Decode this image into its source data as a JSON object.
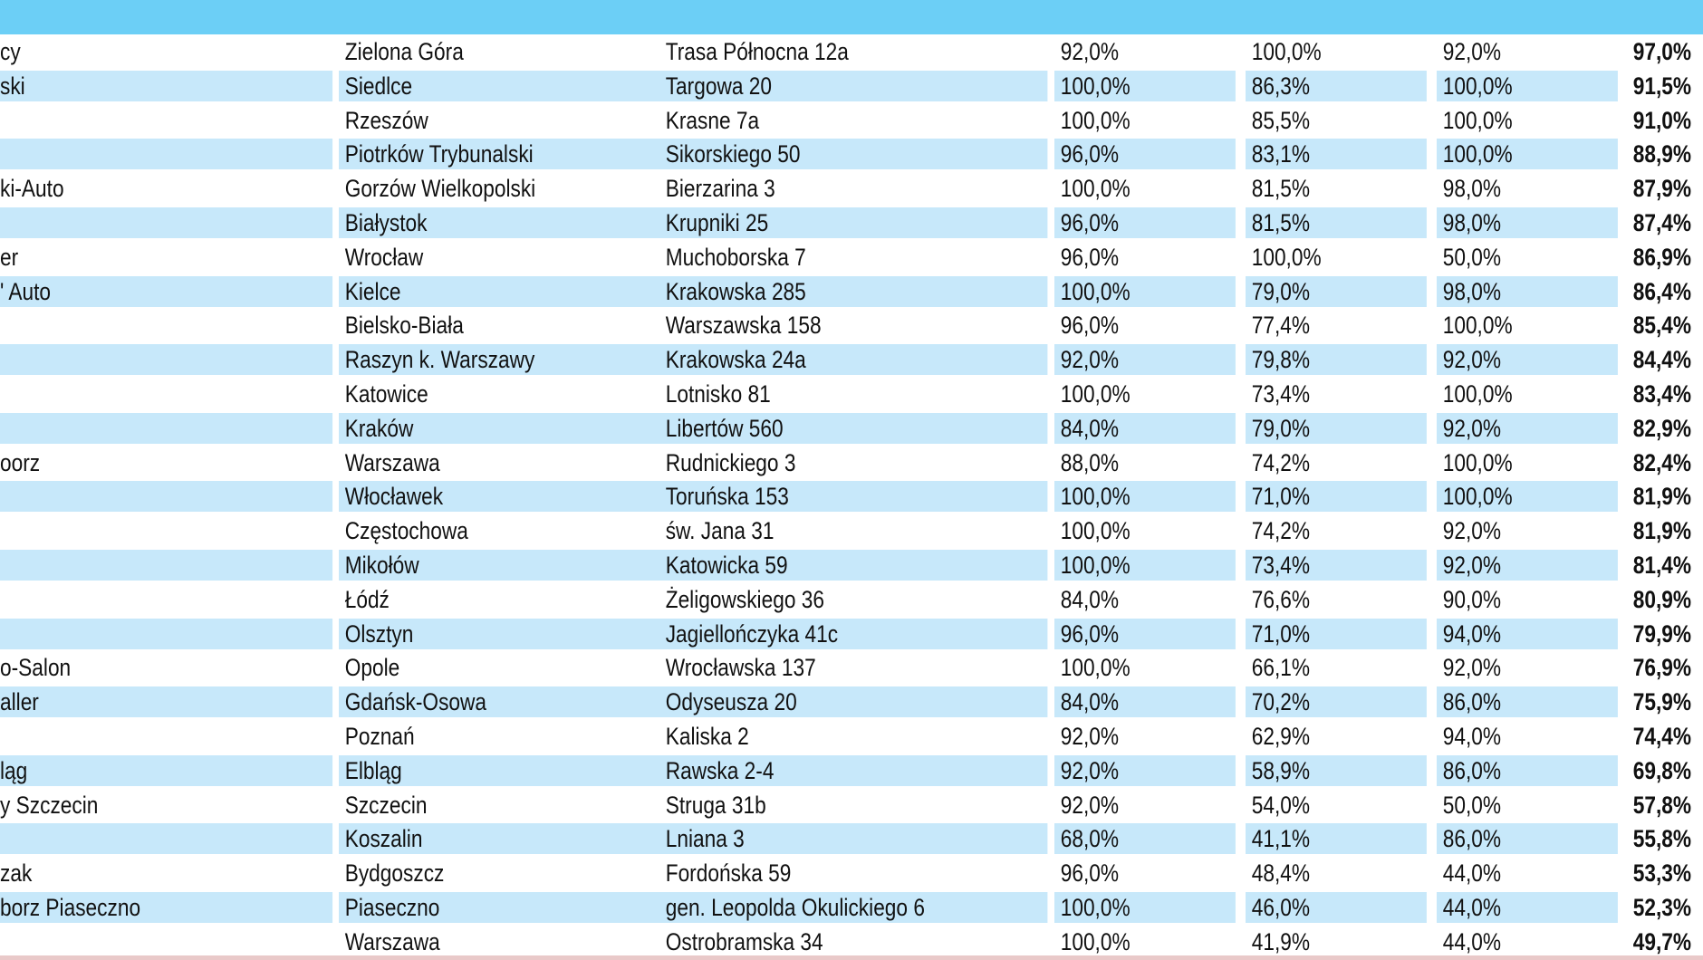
{
  "colors": {
    "header": "#6ccff6",
    "stripe": "#c7e8fa",
    "text": "#111111"
  },
  "rows": [
    {
      "name": "cy",
      "city": "Zielona Góra",
      "address": "Trasa Północna 12a",
      "p1": "92,0%",
      "p2": "100,0%",
      "p3": "92,0%",
      "total": "97,0%"
    },
    {
      "name": "ski",
      "city": "Siedlce",
      "address": "Targowa 20",
      "p1": "100,0%",
      "p2": "86,3%",
      "p3": "100,0%",
      "total": "91,5%"
    },
    {
      "name": "",
      "city": "Rzeszów",
      "address": "Krasne 7a",
      "p1": "100,0%",
      "p2": "85,5%",
      "p3": "100,0%",
      "total": "91,0%"
    },
    {
      "name": "",
      "city": "Piotrków Trybunalski",
      "address": "Sikorskiego 50",
      "p1": "96,0%",
      "p2": "83,1%",
      "p3": "100,0%",
      "total": "88,9%"
    },
    {
      "name": "ki-Auto",
      "city": "Gorzów Wielkopolski",
      "address": "Bierzarina 3",
      "p1": "100,0%",
      "p2": "81,5%",
      "p3": "98,0%",
      "total": "87,9%"
    },
    {
      "name": "",
      "city": "Białystok",
      "address": "Krupniki 25",
      "p1": "96,0%",
      "p2": "81,5%",
      "p3": "98,0%",
      "total": "87,4%"
    },
    {
      "name": "er",
      "city": "Wrocław",
      "address": "Muchoborska 7",
      "p1": "96,0%",
      "p2": "100,0%",
      "p3": "50,0%",
      "total": "86,9%"
    },
    {
      "name": "' Auto",
      "city": "Kielce",
      "address": "Krakowska 285",
      "p1": "100,0%",
      "p2": "79,0%",
      "p3": "98,0%",
      "total": "86,4%"
    },
    {
      "name": "",
      "city": "Bielsko-Biała",
      "address": "Warszawska 158",
      "p1": "96,0%",
      "p2": "77,4%",
      "p3": "100,0%",
      "total": "85,4%"
    },
    {
      "name": "",
      "city": "Raszyn k. Warszawy",
      "address": "Krakowska 24a",
      "p1": "92,0%",
      "p2": "79,8%",
      "p3": "92,0%",
      "total": "84,4%"
    },
    {
      "name": "",
      "city": "Katowice",
      "address": "Lotnisko 81",
      "p1": "100,0%",
      "p2": "73,4%",
      "p3": "100,0%",
      "total": "83,4%"
    },
    {
      "name": "",
      "city": "Kraków",
      "address": "Libertów 560",
      "p1": "84,0%",
      "p2": "79,0%",
      "p3": "92,0%",
      "total": "82,9%"
    },
    {
      "name": "oorz",
      "city": "Warszawa",
      "address": "Rudnickiego 3",
      "p1": "88,0%",
      "p2": "74,2%",
      "p3": "100,0%",
      "total": "82,4%"
    },
    {
      "name": "",
      "city": "Włocławek",
      "address": "Toruńska 153",
      "p1": "100,0%",
      "p2": "71,0%",
      "p3": "100,0%",
      "total": "81,9%"
    },
    {
      "name": "",
      "city": "Częstochowa",
      "address": "św. Jana 31",
      "p1": "100,0%",
      "p2": "74,2%",
      "p3": "92,0%",
      "total": "81,9%"
    },
    {
      "name": "",
      "city": "Mikołów",
      "address": "Katowicka 59",
      "p1": "100,0%",
      "p2": "73,4%",
      "p3": "92,0%",
      "total": "81,4%"
    },
    {
      "name": "",
      "city": "Łódź",
      "address": "Żeligowskiego 36",
      "p1": "84,0%",
      "p2": "76,6%",
      "p3": "90,0%",
      "total": "80,9%"
    },
    {
      "name": "",
      "city": "Olsztyn",
      "address": "Jagiellończyka 41c",
      "p1": "96,0%",
      "p2": "71,0%",
      "p3": "94,0%",
      "total": "79,9%"
    },
    {
      "name": "o-Salon",
      "city": "Opole",
      "address": "Wrocławska 137",
      "p1": "100,0%",
      "p2": "66,1%",
      "p3": "92,0%",
      "total": "76,9%"
    },
    {
      "name": "aller",
      "city": "Gdańsk-Osowa",
      "address": "Odyseusza 20",
      "p1": "84,0%",
      "p2": "70,2%",
      "p3": "86,0%",
      "total": "75,9%"
    },
    {
      "name": "",
      "city": "Poznań",
      "address": "Kaliska 2",
      "p1": "92,0%",
      "p2": "62,9%",
      "p3": "94,0%",
      "total": "74,4%"
    },
    {
      "name": "ląg",
      "city": "Elbląg",
      "address": "Rawska 2-4",
      "p1": "92,0%",
      "p2": "58,9%",
      "p3": "86,0%",
      "total": "69,8%"
    },
    {
      "name": "y Szczecin",
      "city": "Szczecin",
      "address": "Struga 31b",
      "p1": "92,0%",
      "p2": "54,0%",
      "p3": "50,0%",
      "total": "57,8%"
    },
    {
      "name": "",
      "city": "Koszalin",
      "address": "Lniana 3",
      "p1": "68,0%",
      "p2": "41,1%",
      "p3": "86,0%",
      "total": "55,8%"
    },
    {
      "name": "zak",
      "city": "Bydgoszcz",
      "address": "Fordońska 59",
      "p1": "96,0%",
      "p2": "48,4%",
      "p3": "44,0%",
      "total": "53,3%"
    },
    {
      "name": "borz Piaseczno",
      "city": "Piaseczno",
      "address": "gen. Leopolda Okulickiego 6",
      "p1": "100,0%",
      "p2": "46,0%",
      "p3": "44,0%",
      "total": "52,3%"
    },
    {
      "name": "",
      "city": "Warszawa",
      "address": "Ostrobramska 34",
      "p1": "100,0%",
      "p2": "41,9%",
      "p3": "44,0%",
      "total": "49,7%"
    }
  ]
}
